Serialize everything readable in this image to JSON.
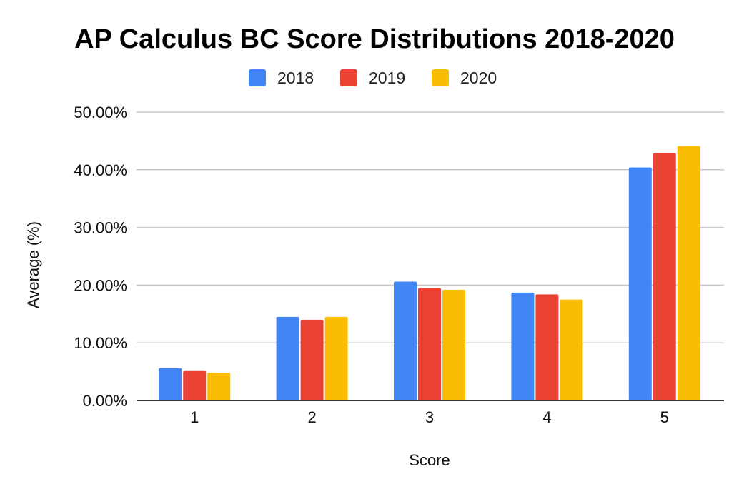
{
  "chart_data": {
    "type": "bar",
    "title": "AP Calculus BC Score Distributions 2018-2020",
    "xlabel": "Score",
    "ylabel": "Average (%)",
    "categories": [
      "1",
      "2",
      "3",
      "4",
      "5"
    ],
    "series": [
      {
        "name": "2018",
        "color": "#4285F4",
        "values": [
          5.6,
          14.5,
          20.6,
          18.7,
          40.4
        ]
      },
      {
        "name": "2019",
        "color": "#EA4335",
        "values": [
          5.1,
          14.0,
          19.5,
          18.4,
          42.9
        ]
      },
      {
        "name": "2020",
        "color": "#FBBC04",
        "values": [
          4.8,
          14.5,
          19.2,
          17.5,
          44.1
        ]
      }
    ],
    "ylim": [
      0,
      50
    ],
    "yticks": [
      "0.00%",
      "10.00%",
      "20.00%",
      "30.00%",
      "40.00%",
      "50.00%"
    ],
    "grid": true,
    "legend_position": "top-center"
  }
}
